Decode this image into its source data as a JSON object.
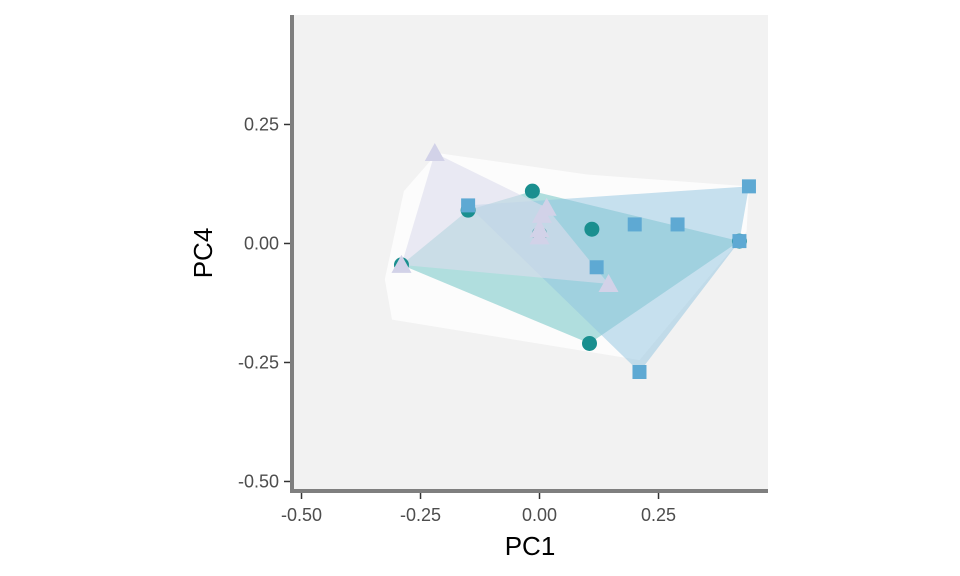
{
  "chart_data": {
    "type": "scatter",
    "xlabel": "PC1",
    "ylabel": "PC4",
    "xlim": [
      -0.52,
      0.48
    ],
    "ylim": [
      -0.52,
      0.48
    ],
    "x_ticks": [
      -0.5,
      -0.25,
      0,
      0.25
    ],
    "x_tick_labels": [
      "-0.50",
      "-0.25",
      "0.00",
      "0.25"
    ],
    "y_ticks": [
      -0.5,
      -0.25,
      0,
      0.25
    ],
    "y_tick_labels": [
      "-0.50",
      "-0.25",
      "0.00",
      "0.25"
    ],
    "grid": false,
    "legend": "none",
    "panel_color": "#f2f2f2",
    "outer_hull": {
      "color": "#ffffff",
      "opacity": 0.75,
      "points": [
        [
          -0.215,
          0.19
        ],
        [
          -0.285,
          0.11
        ],
        [
          -0.325,
          -0.075
        ],
        [
          -0.31,
          -0.16
        ],
        [
          0.21,
          -0.245
        ],
        [
          0.435,
          0.025
        ],
        [
          0.44,
          0.12
        ],
        [
          0.1,
          0.145
        ]
      ]
    },
    "series": [
      {
        "shape": "circle",
        "color": "#1a8f8f",
        "hull_color": "#63c0c0",
        "hull_opacity": 0.5,
        "points": [
          [
            -0.29,
            -0.045
          ],
          [
            -0.15,
            0.07
          ],
          [
            -0.015,
            0.11
          ],
          [
            0.0,
            0.02
          ],
          [
            0.11,
            0.03
          ],
          [
            0.105,
            -0.21
          ],
          [
            0.42,
            0.005
          ]
        ]
      },
      {
        "shape": "square",
        "color": "#5ea9d3",
        "hull_color": "#8fc4e0",
        "hull_opacity": 0.5,
        "points": [
          [
            -0.15,
            0.08
          ],
          [
            0.12,
            -0.05
          ],
          [
            0.2,
            0.04
          ],
          [
            0.29,
            0.04
          ],
          [
            0.42,
            0.005
          ],
          [
            0.44,
            0.12
          ],
          [
            0.21,
            -0.27
          ]
        ]
      },
      {
        "shape": "triangle",
        "color": "#d2d2e8",
        "hull_color": "#dcdced",
        "hull_opacity": 0.6,
        "points": [
          [
            -0.22,
            0.19
          ],
          [
            -0.29,
            -0.045
          ],
          [
            0.0,
            0.015
          ],
          [
            0.0,
            0.03
          ],
          [
            0.005,
            0.06
          ],
          [
            0.015,
            0.075
          ],
          [
            0.145,
            -0.085
          ]
        ]
      }
    ]
  }
}
